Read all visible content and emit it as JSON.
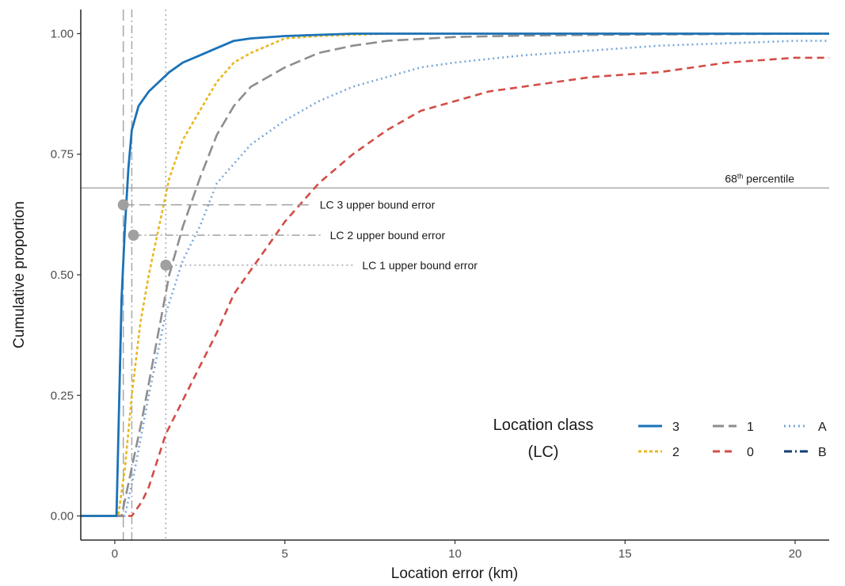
{
  "chart_data": {
    "type": "line",
    "title": "",
    "xlabel": "Location error (km)",
    "ylabel": "Cumulative proportion",
    "xlim": [
      -1,
      21
    ],
    "ylim": [
      -0.05,
      1.05
    ],
    "x_ticks": [
      0,
      5,
      10,
      15,
      20
    ],
    "x_tick_labels": [
      "0",
      "5",
      "10",
      "15",
      "20"
    ],
    "y_ticks": [
      0,
      0.25,
      0.5,
      0.75,
      1.0
    ],
    "y_tick_labels": [
      "0.00",
      "0.25",
      "0.50",
      "0.75",
      "1.00"
    ],
    "grid": false,
    "legend": {
      "title_line1": "Location class",
      "title_line2": "(LC)",
      "placement": "bottom-right",
      "entries_order": [
        "3",
        "1",
        "A",
        "2",
        "0",
        "B"
      ]
    },
    "series": [
      {
        "name": "3",
        "color": "#1a72b8",
        "dash": "solid",
        "points": [
          [
            -1,
            0
          ],
          [
            0,
            0
          ],
          [
            0.05,
            0
          ],
          [
            0.15,
            0.3
          ],
          [
            0.2,
            0.45
          ],
          [
            0.3,
            0.6
          ],
          [
            0.4,
            0.72
          ],
          [
            0.5,
            0.8
          ],
          [
            0.7,
            0.85
          ],
          [
            1,
            0.88
          ],
          [
            1.3,
            0.9
          ],
          [
            1.6,
            0.92
          ],
          [
            2,
            0.94
          ],
          [
            2.5,
            0.955
          ],
          [
            3,
            0.97
          ],
          [
            3.5,
            0.985
          ],
          [
            4,
            0.99
          ],
          [
            5,
            0.995
          ],
          [
            7,
            1.0
          ],
          [
            21,
            1.0
          ]
        ]
      },
      {
        "name": "2",
        "color": "#e8b820",
        "dash": "short",
        "points": [
          [
            -1,
            0
          ],
          [
            0,
            0
          ],
          [
            0.1,
            0
          ],
          [
            0.3,
            0.1
          ],
          [
            0.5,
            0.25
          ],
          [
            0.75,
            0.4
          ],
          [
            1,
            0.5
          ],
          [
            1.3,
            0.6
          ],
          [
            1.6,
            0.7
          ],
          [
            2,
            0.78
          ],
          [
            2.5,
            0.84
          ],
          [
            3,
            0.9
          ],
          [
            3.5,
            0.94
          ],
          [
            4,
            0.96
          ],
          [
            5,
            0.99
          ],
          [
            6,
            0.995
          ],
          [
            8,
            1.0
          ],
          [
            21,
            1.0
          ]
        ]
      },
      {
        "name": "1",
        "color": "#8e8e8e",
        "dash": "long",
        "points": [
          [
            -1,
            0
          ],
          [
            0,
            0
          ],
          [
            0.2,
            0
          ],
          [
            0.5,
            0.1
          ],
          [
            0.8,
            0.2
          ],
          [
            1.2,
            0.35
          ],
          [
            1.6,
            0.5
          ],
          [
            2,
            0.6
          ],
          [
            2.5,
            0.7
          ],
          [
            3,
            0.79
          ],
          [
            3.5,
            0.85
          ],
          [
            4,
            0.89
          ],
          [
            5,
            0.93
          ],
          [
            6,
            0.96
          ],
          [
            7,
            0.975
          ],
          [
            8,
            0.985
          ],
          [
            10,
            0.993
          ],
          [
            12,
            0.996
          ],
          [
            15,
            0.998
          ],
          [
            21,
            1.0
          ]
        ]
      },
      {
        "name": "0",
        "color": "#d24d46",
        "dash": "dash",
        "points": [
          [
            -1,
            0
          ],
          [
            0,
            0
          ],
          [
            0.5,
            0
          ],
          [
            0.8,
            0.03
          ],
          [
            1,
            0.06
          ],
          [
            1.5,
            0.17
          ],
          [
            2,
            0.24
          ],
          [
            2.5,
            0.31
          ],
          [
            3,
            0.38
          ],
          [
            3.5,
            0.46
          ],
          [
            4,
            0.51
          ],
          [
            4.5,
            0.56
          ],
          [
            5,
            0.61
          ],
          [
            5.5,
            0.65
          ],
          [
            6,
            0.69
          ],
          [
            7,
            0.75
          ],
          [
            8,
            0.8
          ],
          [
            9,
            0.84
          ],
          [
            10,
            0.86
          ],
          [
            11,
            0.88
          ],
          [
            12,
            0.89
          ],
          [
            13,
            0.9
          ],
          [
            14,
            0.91
          ],
          [
            15,
            0.915
          ],
          [
            16,
            0.92
          ],
          [
            17,
            0.93
          ],
          [
            18,
            0.94
          ],
          [
            19,
            0.945
          ],
          [
            20,
            0.95
          ],
          [
            21,
            0.95
          ]
        ]
      },
      {
        "name": "A",
        "color": "#7aa7d9",
        "dash": "dot",
        "points": [
          [
            -1,
            0
          ],
          [
            0,
            0
          ],
          [
            0.3,
            0
          ],
          [
            0.6,
            0.1
          ],
          [
            1,
            0.25
          ],
          [
            1.5,
            0.42
          ],
          [
            2,
            0.53
          ],
          [
            2.5,
            0.6
          ],
          [
            3,
            0.69
          ],
          [
            3.5,
            0.73
          ],
          [
            4,
            0.77
          ],
          [
            5,
            0.82
          ],
          [
            6,
            0.86
          ],
          [
            7,
            0.89
          ],
          [
            8,
            0.91
          ],
          [
            9,
            0.93
          ],
          [
            10,
            0.94
          ],
          [
            12,
            0.955
          ],
          [
            14,
            0.965
          ],
          [
            16,
            0.975
          ],
          [
            18,
            0.98
          ],
          [
            20,
            0.985
          ],
          [
            21,
            0.985
          ]
        ]
      },
      {
        "name": "B",
        "color": "#0f3d73",
        "dash": "dashdot",
        "points": [
          [
            0.15,
            0.3
          ],
          [
            0.2,
            0.45
          ]
        ]
      }
    ],
    "reference_lines": [
      {
        "type": "horizontal",
        "y": 0.68,
        "label_base": "68",
        "label_sup": "th",
        "label_rest": " percentile",
        "color": "#a8a8a8"
      },
      {
        "type": "vertical",
        "x": 0.25,
        "dash": "long",
        "color": "#a8a8a8"
      },
      {
        "type": "vertical",
        "x": 0.5,
        "dash": "dashdot",
        "color": "#a8a8a8"
      },
      {
        "type": "vertical",
        "x": 1.5,
        "dash": "dot",
        "color": "#a8a8a8"
      }
    ],
    "annotations": [
      {
        "x": 0.25,
        "y": 0.645,
        "label": "LC 3 upper bound error",
        "dash": "long"
      },
      {
        "x": 0.55,
        "y": 0.582,
        "label": "LC 2 upper bound error",
        "dash": "dashdot"
      },
      {
        "x": 1.5,
        "y": 0.52,
        "label": "LC 1 upper bound error",
        "dash": "dot"
      }
    ]
  }
}
